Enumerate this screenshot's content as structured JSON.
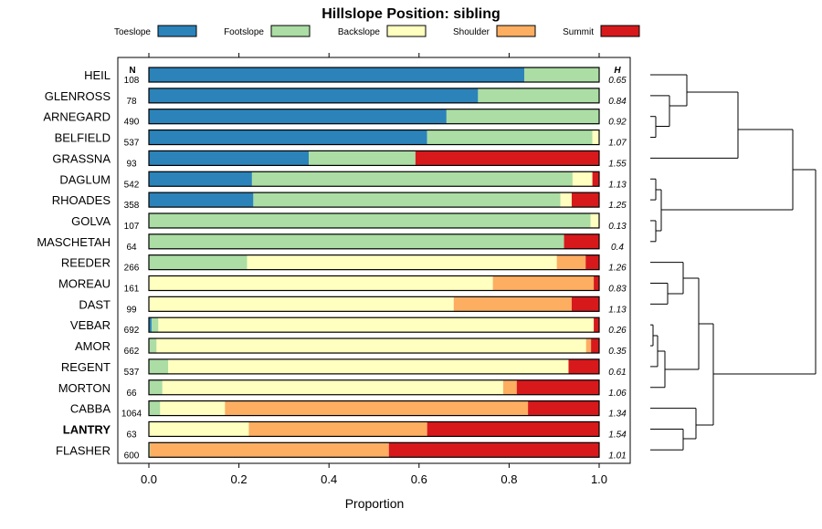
{
  "chart_data": {
    "type": "bar",
    "stacked": true,
    "orientation": "horizontal",
    "title": "Hillslope Position: sibling",
    "xlabel": "Proportion",
    "ylabel": "",
    "xlim": [
      0,
      1
    ],
    "xticks": [
      "0.0",
      "0.2",
      "0.4",
      "0.6",
      "0.8",
      "1.0"
    ],
    "legend_position": "top",
    "n_header": "N",
    "h_header": "H",
    "highlight": "LANTRY",
    "series": [
      {
        "name": "Toeslope",
        "color": "#2b83ba"
      },
      {
        "name": "Footslope",
        "color": "#abdda4"
      },
      {
        "name": "Backslope",
        "color": "#ffffbf"
      },
      {
        "name": "Shoulder",
        "color": "#fdae61"
      },
      {
        "name": "Summit",
        "color": "#d7191c"
      }
    ],
    "rows": [
      {
        "name": "HEIL",
        "n": "108",
        "h": "0.65",
        "values": [
          0.834,
          0.166,
          0,
          0,
          0
        ]
      },
      {
        "name": "GLENROSS",
        "n": "78",
        "h": "0.84",
        "values": [
          0.731,
          0.269,
          0,
          0,
          0
        ]
      },
      {
        "name": "ARNEGARD",
        "n": "490",
        "h": "0.92",
        "values": [
          0.661,
          0.339,
          0,
          0,
          0
        ]
      },
      {
        "name": "BELFIELD",
        "n": "537",
        "h": "1.07",
        "values": [
          0.618,
          0.367,
          0.015,
          0,
          0
        ]
      },
      {
        "name": "GRASSNA",
        "n": "93",
        "h": "1.55",
        "values": [
          0.355,
          0.237,
          0,
          0,
          0.408
        ]
      },
      {
        "name": "DAGLUM",
        "n": "542",
        "h": "1.13",
        "values": [
          0.229,
          0.712,
          0.044,
          0,
          0.015
        ]
      },
      {
        "name": "RHOADES",
        "n": "358",
        "h": "1.25",
        "values": [
          0.232,
          0.682,
          0.025,
          0,
          0.061
        ]
      },
      {
        "name": "GOLVA",
        "n": "107",
        "h": "0.13",
        "values": [
          0,
          0.981,
          0.019,
          0,
          0
        ]
      },
      {
        "name": "MASCHETAH",
        "n": "64",
        "h": "0.4",
        "values": [
          0,
          0.922,
          0,
          0,
          0.078
        ]
      },
      {
        "name": "REEDER",
        "n": "266",
        "h": "1.26",
        "values": [
          0,
          0.218,
          0.688,
          0.064,
          0.03
        ]
      },
      {
        "name": "MOREAU",
        "n": "161",
        "h": "0.83",
        "values": [
          0,
          0,
          0.764,
          0.224,
          0.012
        ]
      },
      {
        "name": "DAST",
        "n": "99",
        "h": "1.13",
        "values": [
          0,
          0,
          0.677,
          0.262,
          0.061
        ]
      },
      {
        "name": "VEBAR",
        "n": "692",
        "h": "0.26",
        "values": [
          0.006,
          0.015,
          0.967,
          0,
          0.012
        ]
      },
      {
        "name": "AMOR",
        "n": "662",
        "h": "0.35",
        "values": [
          0,
          0.017,
          0.954,
          0.011,
          0.018
        ]
      },
      {
        "name": "REGENT",
        "n": "537",
        "h": "0.61",
        "values": [
          0,
          0.043,
          0.889,
          0,
          0.068
        ]
      },
      {
        "name": "MORTON",
        "n": "66",
        "h": "1.06",
        "values": [
          0,
          0.03,
          0.757,
          0.03,
          0.183
        ]
      },
      {
        "name": "CABBA",
        "n": "1064",
        "h": "1.34",
        "values": [
          0,
          0.025,
          0.144,
          0.673,
          0.158
        ]
      },
      {
        "name": "LANTRY",
        "n": "63",
        "h": "1.54",
        "values": [
          0,
          0,
          0.222,
          0.396,
          0.382
        ]
      },
      {
        "name": "FLASHER",
        "n": "600",
        "h": "1.01",
        "values": [
          0,
          0.003,
          0,
          0.53,
          0.467
        ]
      }
    ]
  }
}
